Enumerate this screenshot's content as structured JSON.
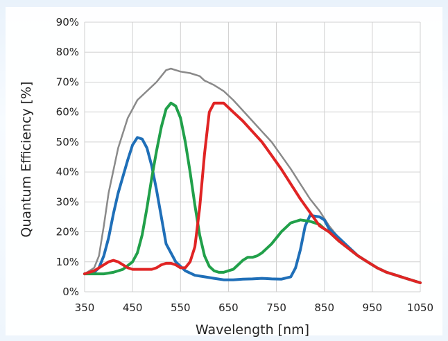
{
  "chart_data": {
    "type": "line",
    "title": "",
    "xlabel": "Wavelength [nm]",
    "ylabel": "Quantum Efficiency [%]",
    "xlim": [
      350,
      1050
    ],
    "ylim": [
      0,
      90
    ],
    "x_ticks": [
      350,
      450,
      550,
      650,
      750,
      850,
      950,
      1050
    ],
    "y_ticks": [
      0,
      10,
      20,
      30,
      40,
      50,
      60,
      70,
      80,
      90
    ],
    "x_tick_labels": [
      "350",
      "450",
      "550",
      "650",
      "750",
      "850",
      "950",
      "1050"
    ],
    "y_tick_labels": [
      "0%",
      "10%",
      "20%",
      "30%",
      "40%",
      "50%",
      "60%",
      "70%",
      "80%",
      "90%"
    ],
    "grid": true,
    "colors": {
      "mono": "#8a8a8a",
      "blue": "#1f6fb8",
      "green": "#21a04a",
      "red": "#e02424"
    },
    "series": [
      {
        "color": "mono",
        "x": [
          350,
          370,
          380,
          390,
          400,
          420,
          440,
          460,
          480,
          500,
          510,
          520,
          530,
          550,
          570,
          590,
          600,
          620,
          640,
          660,
          680,
          700,
          720,
          740,
          760,
          780,
          800,
          820,
          840,
          860,
          880,
          900,
          920,
          940,
          960,
          980,
          1000,
          1020,
          1040,
          1050
        ],
        "y": [
          6,
          8,
          12,
          22,
          33,
          48,
          58,
          64,
          67,
          70,
          72,
          74,
          74.5,
          73.5,
          73,
          72,
          70.5,
          69,
          67,
          64,
          60.5,
          57,
          53.5,
          50,
          45.5,
          41,
          36,
          31,
          27,
          22,
          18,
          15,
          12,
          10,
          8,
          6.5,
          5.5,
          4.5,
          3.5,
          3
        ]
      },
      {
        "color": "blue",
        "x": [
          350,
          370,
          380,
          390,
          400,
          410,
          420,
          440,
          450,
          460,
          470,
          480,
          490,
          500,
          510,
          520,
          540,
          560,
          580,
          600,
          620,
          640,
          660,
          680,
          700,
          720,
          740,
          760,
          780,
          790,
          800,
          810,
          820,
          840,
          850,
          860,
          880,
          900,
          920,
          940,
          960,
          980,
          1000,
          1020,
          1040,
          1050
        ],
        "y": [
          6,
          6.5,
          8,
          12,
          18,
          26,
          33,
          44,
          49,
          51.5,
          51,
          48,
          42,
          34,
          25,
          16,
          10,
          7,
          5.5,
          5,
          4.5,
          4,
          4,
          4.2,
          4.3,
          4.5,
          4.3,
          4.2,
          5,
          8,
          14,
          22,
          25.5,
          25,
          24,
          21,
          18,
          15,
          12,
          10,
          8,
          6.5,
          5.5,
          4.5,
          3.5,
          3
        ]
      },
      {
        "color": "green",
        "x": [
          350,
          370,
          390,
          410,
          430,
          450,
          460,
          470,
          480,
          490,
          500,
          510,
          520,
          530,
          540,
          550,
          560,
          570,
          580,
          590,
          600,
          610,
          620,
          630,
          640,
          650,
          660,
          670,
          680,
          690,
          700,
          710,
          720,
          740,
          750,
          760,
          780,
          800,
          820,
          840,
          850,
          860,
          880,
          900,
          920,
          940,
          960,
          980,
          1000,
          1020,
          1040,
          1050
        ],
        "y": [
          6,
          6,
          6,
          6.5,
          7.5,
          10,
          13,
          19,
          28,
          38,
          47,
          55,
          61,
          63,
          62,
          58,
          50,
          40,
          29,
          19,
          12,
          8.5,
          7,
          6.5,
          6.5,
          7,
          7.5,
          9,
          10.5,
          11.5,
          11.5,
          12,
          13,
          16,
          18,
          20,
          23,
          24,
          23.5,
          22.5,
          21,
          20,
          17,
          14.5,
          12,
          10,
          8,
          6.5,
          5.5,
          4.5,
          3.5,
          3
        ]
      },
      {
        "color": "red",
        "x": [
          350,
          370,
          380,
          390,
          400,
          410,
          420,
          430,
          440,
          450,
          460,
          470,
          480,
          490,
          500,
          510,
          520,
          530,
          540,
          550,
          560,
          570,
          580,
          590,
          600,
          610,
          620,
          640,
          660,
          680,
          700,
          720,
          740,
          760,
          780,
          800,
          820,
          840,
          860,
          880,
          900,
          920,
          940,
          960,
          980,
          1000,
          1020,
          1040,
          1050
        ],
        "y": [
          6,
          7,
          8,
          9,
          10,
          10.5,
          10,
          9,
          8,
          7.5,
          7.5,
          7.5,
          7.5,
          7.5,
          8,
          9,
          9.5,
          9.5,
          9,
          8,
          8,
          10,
          15,
          28,
          46,
          60,
          63,
          63,
          60,
          57,
          53.5,
          50,
          45.5,
          41,
          36,
          31,
          26.5,
          22,
          20,
          17,
          14.5,
          12,
          10,
          8,
          6.5,
          5.5,
          4.5,
          3.5,
          3
        ]
      }
    ]
  }
}
